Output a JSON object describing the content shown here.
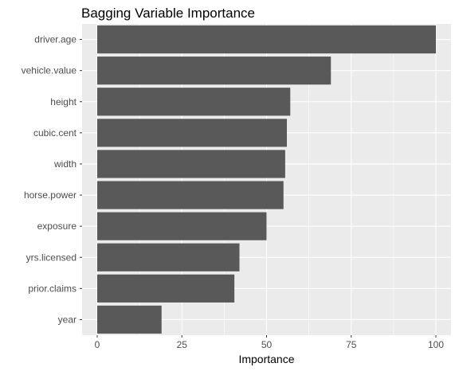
{
  "chart_data": {
    "type": "bar",
    "orientation": "horizontal",
    "title": "Bagging Variable Importance",
    "xlabel": "Importance",
    "ylabel": "",
    "categories": [
      "driver.age",
      "vehicle.value",
      "height",
      "cubic.cent",
      "width",
      "horse.power",
      "exposure",
      "yrs.licensed",
      "prior.claims",
      "year"
    ],
    "values": [
      100,
      69,
      57,
      56,
      55.5,
      55,
      50,
      42,
      40.5,
      19
    ],
    "xlim": [
      0,
      100
    ],
    "x_ticks": [
      0,
      25,
      50,
      75,
      100
    ],
    "grid": true,
    "legend": "none",
    "colors": {
      "panel": "#ebebeb",
      "grid_major": "#ffffff",
      "bar": "#595959",
      "tick_text": "#4d4d4d",
      "tick_mark": "#333333"
    }
  }
}
